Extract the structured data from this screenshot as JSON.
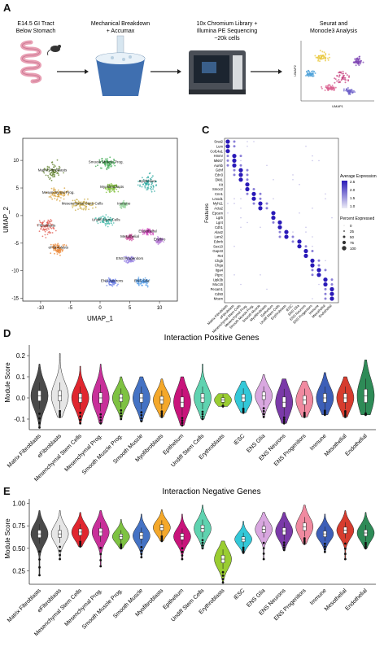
{
  "panel_labels": {
    "a": "A",
    "b": "B",
    "c": "C",
    "d": "D",
    "e": "E"
  },
  "panel_a": {
    "step1": [
      "E14.5 GI Tract",
      "Below Stomach"
    ],
    "step2": [
      "Mechanical Breakdown",
      "+ Accumax"
    ],
    "step3": [
      "10x Chromium Library +",
      "Illumina PE Sequencing",
      "~20k cells"
    ],
    "step4": [
      "Seurat and",
      "Monocle3 Analysis"
    ],
    "mini_umap": {
      "xlabel": "UMAP1",
      "ylabel": "UMAP2"
    }
  },
  "panel_b": {
    "xlabel": "UMAP_1",
    "ylabel": "UMAP_2",
    "xticks": [
      "-10",
      "-5",
      "0",
      "5",
      "10"
    ],
    "yticks": [
      "10",
      "5",
      "0",
      "-5",
      "-10",
      "-15"
    ],
    "clusters": [
      {
        "label": "Matrix Fibroblasts",
        "color": "#5d7f2a"
      },
      {
        "label": "Mesenchymal Prog.",
        "color": "#d8a23a"
      },
      {
        "label": "Smooth Muscle Prog.",
        "color": "#3aa84d"
      },
      {
        "label": "Myofibroblasts",
        "color": "#7fbf3a"
      },
      {
        "label": "Mesenchymal Stem Cells",
        "color": "#c9a93e"
      },
      {
        "label": "Undiff Stem Cells",
        "color": "#45b9a9"
      },
      {
        "label": "Epithelium",
        "color": "#2ca9a0"
      },
      {
        "label": "Fibroblasts",
        "color": "#e05a4f"
      },
      {
        "label": "eFibroblasts",
        "color": "#e9822d"
      },
      {
        "label": "Endothelial",
        "color": "#d24fbf"
      },
      {
        "label": "Erythro",
        "color": "#b980d8"
      },
      {
        "label": "Mesothelial",
        "color": "#d15fa7"
      },
      {
        "label": "ENS Progenitors",
        "color": "#9e8be6"
      },
      {
        "label": "ENS Glia",
        "color": "#5aa0ea"
      },
      {
        "label": "ENS Neurons",
        "color": "#6a7ee5"
      },
      {
        "label": "Immune",
        "color": "#9ad6a0"
      }
    ]
  },
  "panel_c": {
    "ylabel": "Features",
    "genes": [
      "Snai2",
      "Lum",
      "Col14a1",
      "Hmmr",
      "Mki67",
      "Aurkb",
      "Gdnf",
      "Edn3",
      "Dkk1",
      "Kit",
      "Smoc2",
      "Cnn1",
      "Lmod1",
      "Myh11",
      "Acta2",
      "Epcam",
      "Lgr5",
      "Lgr4",
      "Cdh1",
      "Alas2",
      "Lars2",
      "Ednrb",
      "Sox10",
      "Gap43",
      "Ret",
      "Chgb",
      "Chga",
      "Itga4",
      "Ptprc",
      "Upk3b",
      "Muc16",
      "Pecam1",
      "Cd93",
      "Mcam"
    ],
    "clusters": [
      "Matrix Fibroblasts",
      "eFibroblasts",
      "Mesenchymal Stem Cells",
      "Mesenchymal Prog.",
      "Smooth Muscle Prog.",
      "Smooth Muscle",
      "Myofibroblasts",
      "Epithelium",
      "Undiff Stem Cells",
      "Erythroblasts",
      "iESC",
      "ENS Glia",
      "ENS Neurons",
      "ENS Progenitors",
      "Immune",
      "Mesothelial",
      "Endothelial"
    ],
    "legend_expr_title": "Average Expression",
    "legend_expr_ticks": [
      "2.5",
      "2.0",
      "1.5",
      "1.0"
    ],
    "legend_pct_title": "Percent Expressed",
    "legend_pct_ticks": [
      "0",
      "25",
      "50",
      "75",
      "100"
    ]
  },
  "panel_d": {
    "title": "Interaction Positive Genes",
    "ylabel": "Module Score",
    "yticks": [
      "0.2",
      "0.1",
      "0.0",
      "-0.1"
    ]
  },
  "panel_e": {
    "title": "Interaction Negative Genes",
    "ylabel": "Module Score",
    "yticks": [
      "1.00",
      "0.75",
      "0.50",
      "0.25"
    ]
  },
  "chart_data": [
    {
      "type": "violin",
      "title": "Interaction Positive Genes",
      "ylabel": "Module Score",
      "ylim": [
        -0.15,
        0.25
      ],
      "categories": [
        "Matrix Fibroblasts",
        "eFibroblasts",
        "Mesenchymal Stem Cells",
        "Mesenchymal Prog.",
        "Smooth Muscle Prog.",
        "Smooth Muscle",
        "Myofibroblasts",
        "Epithelium",
        "Undiff Stem Cells",
        "Erythroblasts",
        "iESC",
        "ENS Glia",
        "ENS Neurons",
        "ENS Progenitors",
        "Immune",
        "Mesothelial",
        "Endothelial"
      ],
      "colors": [
        "#4a4a4a",
        "#e6e6e6",
        "#e0262f",
        "#c8309a",
        "#7ec242",
        "#4472c4",
        "#f4a82a",
        "#c8147b",
        "#5fd3b0",
        "#9acd32",
        "#33c8d8",
        "#d9a7e0",
        "#7a3aa8",
        "#f08aa0",
        "#3d5fb8",
        "#d63c2e",
        "#2e8b57"
      ],
      "medians": [
        0.01,
        0.01,
        0.0,
        0.0,
        0.0,
        0.0,
        -0.01,
        -0.02,
        0.0,
        -0.01,
        0.0,
        0.01,
        -0.02,
        -0.01,
        0.0,
        0.0,
        0.01
      ],
      "spreads": [
        0.07,
        0.07,
        0.06,
        0.07,
        0.05,
        0.06,
        0.05,
        0.07,
        0.06,
        0.03,
        0.05,
        0.05,
        0.07,
        0.06,
        0.06,
        0.06,
        0.09
      ],
      "ymin": [
        -0.14,
        -0.09,
        -0.12,
        -0.12,
        -0.1,
        -0.11,
        -0.09,
        -0.13,
        -0.1,
        -0.04,
        -0.07,
        -0.09,
        -0.12,
        -0.09,
        -0.08,
        -0.09,
        -0.08
      ],
      "ymax": [
        0.16,
        0.21,
        0.15,
        0.16,
        0.1,
        0.1,
        0.09,
        0.1,
        0.16,
        0.02,
        0.08,
        0.11,
        0.09,
        0.08,
        0.12,
        0.1,
        0.18
      ]
    },
    {
      "type": "violin",
      "title": "Interaction Negative Genes",
      "ylabel": "Module Score",
      "ylim": [
        0.1,
        1.05
      ],
      "categories": [
        "Matrix Fibroblasts",
        "eFibroblasts",
        "Mesenchymal Stem Cells",
        "Mesenchymal Prog.",
        "Smooth Muscle Prog.",
        "Smooth Muscle",
        "Myofibroblasts",
        "Epithelium",
        "Undiff Stem Cells",
        "Erythroblasts",
        "iESC",
        "ENS Glia",
        "ENS Neurons",
        "ENS Progenitors",
        "Immune",
        "Mesothelial",
        "Endothelial"
      ],
      "colors": [
        "#4a4a4a",
        "#e6e6e6",
        "#e0262f",
        "#c8309a",
        "#7ec242",
        "#4472c4",
        "#f4a82a",
        "#c8147b",
        "#5fd3b0",
        "#9acd32",
        "#33c8d8",
        "#d9a7e0",
        "#7a3aa8",
        "#f08aa0",
        "#3d5fb8",
        "#d63c2e",
        "#2e8b57"
      ],
      "medians": [
        0.66,
        0.66,
        0.68,
        0.68,
        0.63,
        0.64,
        0.73,
        0.63,
        0.72,
        0.38,
        0.6,
        0.71,
        0.69,
        0.74,
        0.66,
        0.7,
        0.67
      ],
      "spreads": [
        0.12,
        0.11,
        0.1,
        0.12,
        0.08,
        0.1,
        0.09,
        0.1,
        0.11,
        0.12,
        0.08,
        0.1,
        0.11,
        0.12,
        0.09,
        0.1,
        0.1
      ],
      "ymin": [
        0.2,
        0.38,
        0.52,
        0.3,
        0.5,
        0.4,
        0.58,
        0.38,
        0.5,
        0.12,
        0.45,
        0.38,
        0.48,
        0.55,
        0.46,
        0.38,
        0.5
      ],
      "ymax": [
        0.92,
        0.92,
        0.9,
        0.92,
        0.82,
        0.88,
        0.93,
        0.88,
        0.98,
        0.58,
        0.8,
        0.9,
        0.9,
        0.98,
        0.88,
        0.92,
        0.9
      ]
    }
  ]
}
